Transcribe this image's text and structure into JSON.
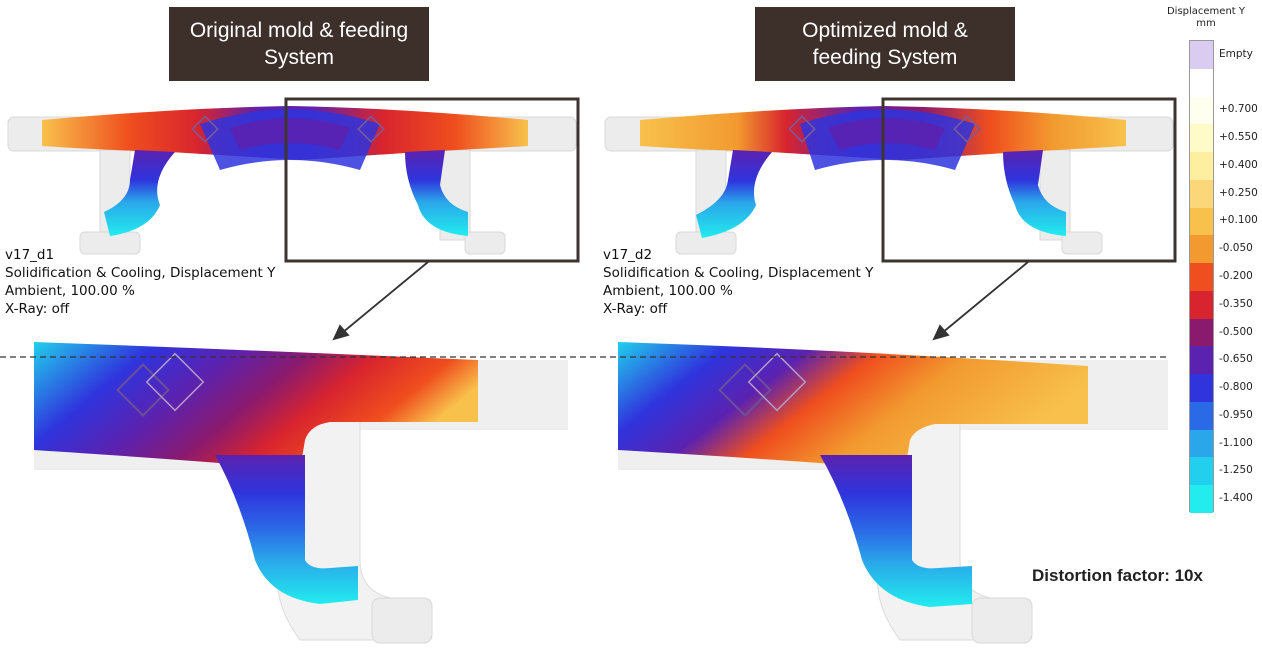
{
  "left": {
    "title": "Original mold & feeding System",
    "info": [
      "v17_d1",
      "Solidification & Cooling, Displacement Y",
      "Ambient, 100.00 %",
      "X-Ray: off"
    ]
  },
  "right": {
    "title": "Optimized mold & feeding System",
    "info": [
      "v17_d2",
      "Solidification & Cooling, Displacement Y",
      "Ambient, 100.00 %",
      "X-Ray: off"
    ]
  },
  "legend": {
    "title": "Displacement Y",
    "unit": "mm",
    "entries": [
      {
        "label": "Empty",
        "color": "#d9ccf0"
      },
      {
        "label": "",
        "color": "#ffffff"
      },
      {
        "label": "+0.700",
        "color": "#fffff0"
      },
      {
        "label": "+0.550",
        "color": "#fffbc8"
      },
      {
        "label": "+0.400",
        "color": "#fdeea0"
      },
      {
        "label": "+0.250",
        "color": "#fbd77a"
      },
      {
        "label": "+0.100",
        "color": "#f8c14c"
      },
      {
        "label": "-0.050",
        "color": "#f29a2f"
      },
      {
        "label": "-0.200",
        "color": "#ef4e1e"
      },
      {
        "label": "-0.350",
        "color": "#d8242e"
      },
      {
        "label": "-0.500",
        "color": "#8a1a6e"
      },
      {
        "label": "-0.650",
        "color": "#5b22b0"
      },
      {
        "label": "-0.800",
        "color": "#2f34dd"
      },
      {
        "label": "-0.950",
        "color": "#2b6ae6"
      },
      {
        "label": "-1.100",
        "color": "#2aa6ea"
      },
      {
        "label": "-1.250",
        "color": "#22cfec"
      },
      {
        "label": "-1.400",
        "color": "#22ecee"
      }
    ]
  },
  "distortion_label": "Distortion factor: 10x"
}
